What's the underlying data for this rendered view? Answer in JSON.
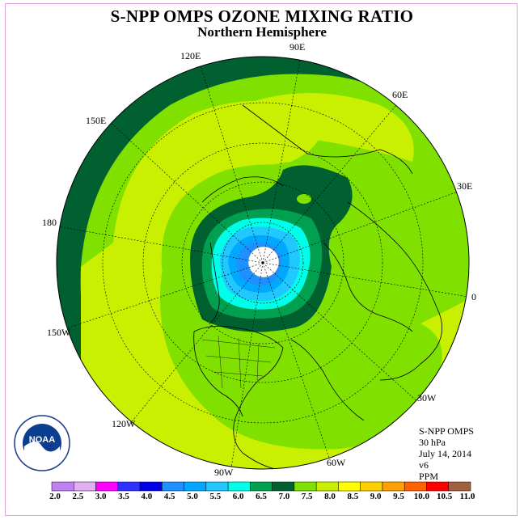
{
  "title": "S-NPP OMPS OZONE MIXING RATIO",
  "subtitle": "Northern Hemisphere",
  "longitudes": {
    "e120": "120E",
    "e90": "90E",
    "e60": "60E",
    "e150": "150E",
    "e30": "30E",
    "l180": "180",
    "zero": "0",
    "w150": "150W",
    "w30": "30W",
    "w120": "120W",
    "w90": "90W",
    "w60": "60W"
  },
  "info": {
    "instrument": "S-NPP OMPS",
    "level": "30 hPa",
    "date": "July 14, 2014",
    "version": "v6",
    "units": "PPM"
  },
  "colorbar": {
    "labels": [
      "2.0",
      "2.5",
      "3.0",
      "3.5",
      "4.0",
      "4.5",
      "5.0",
      "5.5",
      "6.0",
      "6.5",
      "7.0",
      "7.5",
      "8.0",
      "8.5",
      "9.0",
      "9.5",
      "10.0",
      "10.5",
      "11.0"
    ],
    "colors": [
      "#c080f0",
      "#e0b0f0",
      "#ff00ff",
      "#3030ff",
      "#0000e8",
      "#1e90ff",
      "#00a8ff",
      "#20c8ff",
      "#00ffe8",
      "#00a050",
      "#006030",
      "#80e000",
      "#c8f000",
      "#ffff00",
      "#ffd000",
      "#ffa000",
      "#ff6000",
      "#ff0000",
      "#a06040"
    ]
  },
  "logo": {
    "text": "NOAA"
  }
}
